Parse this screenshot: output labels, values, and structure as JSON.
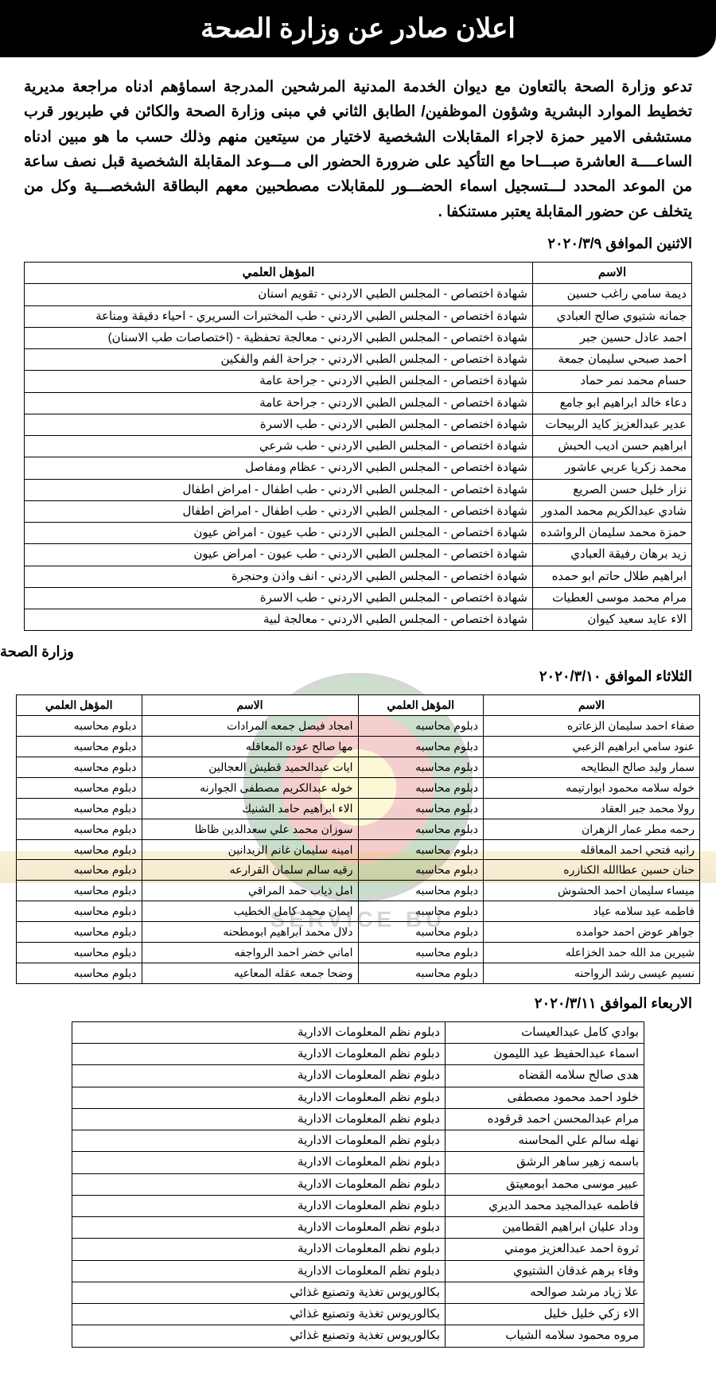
{
  "header": {
    "title": "اعلان صادر عن وزارة الصحة"
  },
  "intro": {
    "paragraph": "تدعو وزارة الصحة بالتعاون مع ديوان الخدمة المدنية المرشحين المدرجة اسماؤهم ادناه مراجعة مديرية تخطيط الموارد البشرية وشؤون الموظفين/ الطابق الثاني في مبنى وزارة الصحة والكائن في طبربور قرب مستشفى الامير حمزة لاجراء المقابلات الشخصية لاختيار من سيتعين منهم وذلك حسب ما هو مبين ادناه الساعــــة العاشرة صبـــاحا مع التأكيد على ضرورة الحضور الى مـــوعد المقابلة الشخصية قبل نصف ساعة من الموعد المحدد لـــتسجيل اسماء الحضـــور للمقابلات مصطحبين معهم البطاقة الشخصـــية وكل من يتخلف عن حضور المقابلة يعتبر مستنكفا ."
  },
  "table1": {
    "date": "الاثنين الموافق ٢٠٢٠/٣/٩",
    "columns": [
      "الاسم",
      "المؤهل العلمي"
    ],
    "rows": [
      [
        "ديمة سامي راغب حسين",
        "شهادة اختصاص - المجلس الطبي الاردني - تقويم اسنان"
      ],
      [
        "جمانه شتيوي صالح العبادي",
        "شهادة اختصاص - المجلس الطبي الاردني - طب المختبرات السريري - احياء دقيقة ومناعة"
      ],
      [
        "احمد عادل حسين جبر",
        "شهادة اختصاص - المجلس الطبي الاردني - معالجة تحفظية - (اختصاصات طب الاسنان)"
      ],
      [
        "احمد صبحي سليمان جمعة",
        "شهادة اختصاص - المجلس الطبي الاردني - جراحة الفم والفكين"
      ],
      [
        "حسام محمد نمر حماد",
        "شهادة اختصاص - المجلس الطبي الاردني - جراحة عامة"
      ],
      [
        "دعاء خالد ابراهيم ابو جامع",
        "شهادة اختصاص - المجلس الطبي الاردني - جراحة عامة"
      ],
      [
        "عدير عبدالعزيز كايد الربيحات",
        "شهادة اختصاص - المجلس الطبي الاردني - طب الاسرة"
      ],
      [
        "ابراهيم حسن اديب الحبش",
        "شهادة اختصاص - المجلس الطبي الاردني - طب شرعي"
      ],
      [
        "محمد زكريا عربي عاشور",
        "شهادة اختصاص - المجلس الطبي الاردني - عظام ومفاصل"
      ],
      [
        "نزار خليل حسن الصريع",
        "شهادة اختصاص - المجلس الطبي الاردني - طب اطفال - امراض اطفال"
      ],
      [
        "شادي عبدالكريم محمد المدور",
        "شهادة اختصاص - المجلس الطبي الاردني - طب اطفال - امراض اطفال"
      ],
      [
        "حمزة محمد سليمان الرواشده",
        "شهادة اختصاص - المجلس الطبي الاردني - طب عيون - امراض عيون"
      ],
      [
        "زيد برهان رفيقة العبادي",
        "شهادة اختصاص - المجلس الطبي الاردني - طب عيون - امراض عيون"
      ],
      [
        "ابراهيم طلال حاتم ابو حمده",
        "شهادة اختصاص - المجلس الطبي الاردني - انف واذن وحنجرة"
      ],
      [
        "مرام محمد موسى العطيات",
        "شهادة اختصاص - المجلس الطبي الاردني - طب الاسرة"
      ],
      [
        "الاء عايد سعيد كيوان",
        "شهادة اختصاص - المجلس الطبي الاردني - معالجة لبية"
      ]
    ],
    "footer": "وزارة الصحة"
  },
  "table2": {
    "date": "الثلاثاء الموافق ٢٠٢٠/٣/١٠",
    "columns": [
      "الاسم",
      "المؤهل العلمي",
      "الاسم",
      "المؤهل العلمي"
    ],
    "rows": [
      [
        "صفاء احمد سليمان الزعاتره",
        "دبلوم محاسبه",
        "امجاد فيصل جمعه المرادات",
        "دبلوم محاسبه"
      ],
      [
        "عنود سامي ابراهيم الزعبي",
        "دبلوم محاسبه",
        "مها صالح عوده المعاقله",
        "دبلوم محاسبه"
      ],
      [
        "سمار وليد صالح البطايحه",
        "دبلوم محاسبه",
        "ايات عبدالحميد قطيش العجالين",
        "دبلوم محاسبه"
      ],
      [
        "خوله سلامه محمود ابوارتيمه",
        "دبلوم محاسبه",
        "خوله عبدالكريم مصطفى الجوارنه",
        "دبلوم محاسبه"
      ],
      [
        "رولا محمد جبر العقاد",
        "دبلوم محاسبه",
        "الاء ابراهيم حامد الشنيك",
        "دبلوم محاسبه"
      ],
      [
        "رحمه مطر عمار الزهران",
        "دبلوم محاسبه",
        "سوزان محمد علي سعدالدين ظاظا",
        "دبلوم محاسبه"
      ],
      [
        "رانيه فتحي احمد المعاقله",
        "دبلوم محاسبه",
        "امينه سليمان غانم الزيدانين",
        "دبلوم محاسبه"
      ],
      [
        "حنان حسين عطاالله الكنازره",
        "دبلوم محاسبه",
        "رقيه سالم سلمان القرارعه",
        "دبلوم محاسبه"
      ],
      [
        "ميساء سليمان احمد الحشوش",
        "دبلوم محاسبه",
        "امل ذياب حمد المراقي",
        "دبلوم محاسبه"
      ],
      [
        "فاطمه عيد سلامه عياد",
        "دبلوم محاسبه",
        "ايمان محمد كامل الخطيب",
        "دبلوم محاسبه"
      ],
      [
        "جواهر عوض احمد حوامده",
        "دبلوم محاسبه",
        "دلال محمد ابراهيم ابومطحنه",
        "دبلوم محاسبه"
      ],
      [
        "شيرين مد الله حمد الخزاعله",
        "دبلوم محاسبه",
        "اماني خضر احمد الرواجفه",
        "دبلوم محاسبه"
      ],
      [
        "نسيم عيسى رشد الرواحنه",
        "دبلوم محاسبه",
        "وضحا جمعه عقله المعاعيه",
        "دبلوم محاسبه"
      ]
    ]
  },
  "table3": {
    "date": "الاربعاء الموافق ٢٠٢٠/٣/١١",
    "rows": [
      [
        "بوادي كامل عبدالعيسات",
        "دبلوم نظم المعلومات الادارية"
      ],
      [
        "اسماء عبدالحفيظ عيد الليمون",
        "دبلوم نظم المعلومات الادارية"
      ],
      [
        "هدى صالح سلامه القضاه",
        "دبلوم نظم المعلومات الادارية"
      ],
      [
        "خلود احمد محمود مصطفى",
        "دبلوم نظم المعلومات الادارية"
      ],
      [
        "مرام عبدالمحسن احمد قرقوده",
        "دبلوم نظم المعلومات الادارية"
      ],
      [
        "نهله سالم علي المحاسنه",
        "دبلوم نظم المعلومات الادارية"
      ],
      [
        "باسمه زهير ساهر الرشق",
        "دبلوم نظم المعلومات الادارية"
      ],
      [
        "عبير موسى محمد ابومعيتق",
        "دبلوم نظم المعلومات الادارية"
      ],
      [
        "فاطمه عبدالمجيد محمد الديري",
        "دبلوم نظم المعلومات الادارية"
      ],
      [
        "وداد عليان ابراهيم القطامين",
        "دبلوم نظم المعلومات الادارية"
      ],
      [
        "ثروة احمد عبدالعزيز مومني",
        "دبلوم نظم المعلومات الادارية"
      ],
      [
        "وفاء برهم غدقان الشتيوي",
        "دبلوم نظم المعلومات الادارية"
      ],
      [
        "علا زياد مرشد صوالحه",
        "بكالوريوس تغذية وتصنيع غذائي"
      ],
      [
        "الاء زكي خليل خليل",
        "بكالوريوس تغذية وتصنيع غذائي"
      ],
      [
        "مروه محمود سلامه الشياب",
        "بكالوريوس تغذية وتصنيع غذائي"
      ]
    ]
  }
}
